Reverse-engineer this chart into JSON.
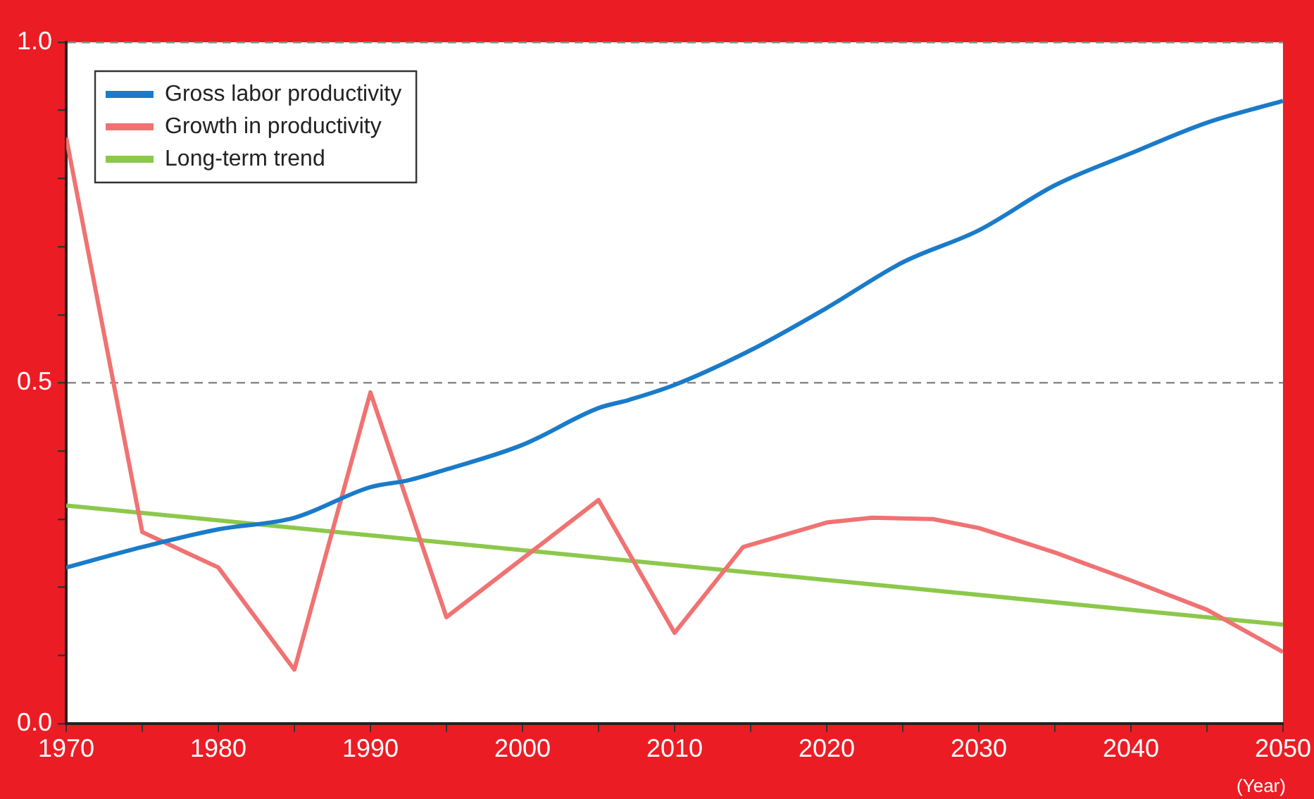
{
  "chart_data": {
    "type": "line",
    "xlabel": "(Year)",
    "xlim": [
      1970,
      2050
    ],
    "xticks": [
      1970,
      {
        "value": 1975,
        "label": null
      },
      1980,
      {
        "value": 1985,
        "label": null
      },
      1990,
      {
        "value": 1995,
        "label": null
      },
      2000,
      {
        "value": 2005,
        "label": null
      },
      2010,
      {
        "value": 2015,
        "label": null
      },
      2020,
      {
        "value": 2025,
        "label": null
      },
      2030,
      {
        "value": 2035,
        "label": null
      },
      2040,
      {
        "value": 2045,
        "label": null
      },
      2050
    ],
    "ylim": [
      0,
      1
    ],
    "yticks": [
      {
        "value": 0,
        "label": "0.0"
      },
      {
        "value": 0.1,
        "label": null
      },
      {
        "value": 0.2,
        "label": null
      },
      {
        "value": 0.3,
        "label": null
      },
      {
        "value": 0.4,
        "label": null
      },
      {
        "value": 0.5,
        "label": "0.5"
      },
      {
        "value": 0.6,
        "label": null
      },
      {
        "value": 0.7,
        "label": null
      },
      {
        "value": 0.8,
        "label": null
      },
      {
        "value": 0.9,
        "label": null
      },
      {
        "value": 1,
        "label": "1.0"
      }
    ],
    "grid": "y",
    "legend": "top left",
    "series": [
      {
        "name": "Gross labor productivity",
        "color": "#1a7bc9",
        "x": [
          1970,
          1975,
          1980,
          1985,
          1990,
          1992.5,
          1995,
          2000,
          2005,
          2007,
          2010,
          2015,
          2020,
          2025,
          2030,
          2035,
          2040,
          2045,
          2050
        ],
        "values": [
          0.229,
          0.259,
          0.285,
          0.302,
          0.347,
          0.357,
          0.373,
          0.409,
          0.463,
          0.475,
          0.497,
          0.548,
          0.61,
          0.677,
          0.724,
          0.79,
          0.837,
          0.882,
          0.914
        ]
      },
      {
        "name": "Growth in productivity",
        "color": "#f07272",
        "x": [
          1970,
          1975,
          1980,
          1985,
          1990,
          1995,
          2005,
          2010,
          2014.5,
          2020,
          2023,
          2027,
          2030,
          2035,
          2040,
          2045,
          2050
        ],
        "values": [
          0.86,
          0.281,
          0.229,
          0.079,
          0.486,
          0.156,
          0.328,
          0.133,
          0.259,
          0.295,
          0.302,
          0.3,
          0.287,
          0.251,
          0.21,
          0.167,
          0.105
        ]
      },
      {
        "name": "Long-term trend",
        "color": "#8cc84b",
        "x": [
          1970,
          2050
        ],
        "values": [
          0.32,
          0.145
        ]
      }
    ]
  }
}
